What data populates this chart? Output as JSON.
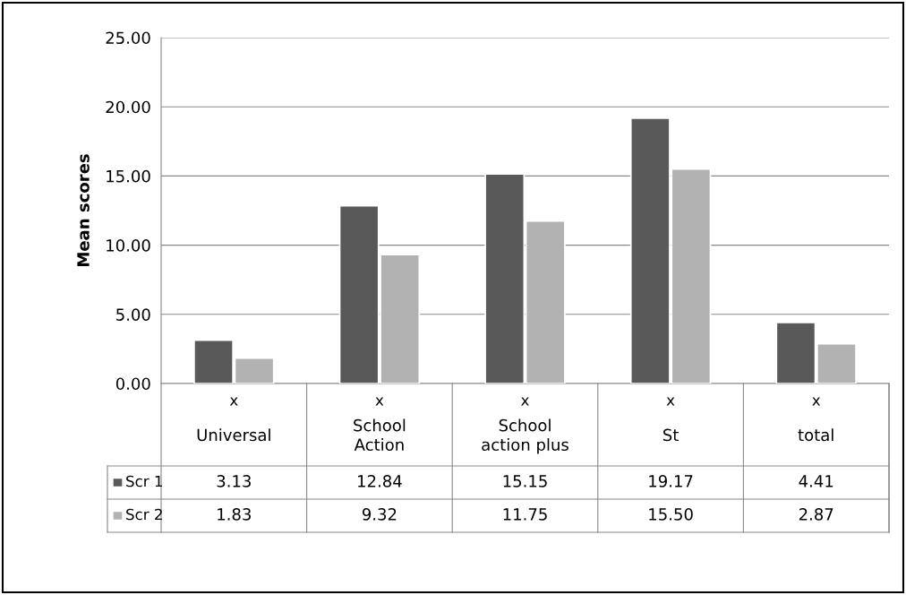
{
  "chart_data": {
    "type": "bar",
    "ylabel": "Mean scores",
    "categories": [
      "Universal",
      "School\nAction",
      "School\naction plus",
      "St",
      "total"
    ],
    "series": [
      {
        "name": "Scr 1",
        "color": "#595959",
        "values": [
          3.13,
          12.84,
          15.15,
          19.17,
          4.41
        ],
        "value_labels": [
          "3.13",
          "12.84",
          "15.15",
          "19.17",
          "4.41"
        ]
      },
      {
        "name": "Scr 2",
        "color": "#b2b2b2",
        "values": [
          1.83,
          9.32,
          11.75,
          15.5,
          2.87
        ],
        "value_labels": [
          "1.83",
          "9.32",
          "11.75",
          "15.50",
          "2.87"
        ]
      }
    ],
    "annotations": [
      "x",
      "x",
      "x",
      "x",
      "x"
    ],
    "ylim": [
      0,
      25
    ],
    "yticks": [
      {
        "value": 0,
        "label": "0.00"
      },
      {
        "value": 5,
        "label": "5.00"
      },
      {
        "value": 10,
        "label": "10.00"
      },
      {
        "value": 15,
        "label": "15.00"
      },
      {
        "value": 20,
        "label": "20.00"
      },
      {
        "value": 25,
        "label": "25.00"
      }
    ],
    "grid": "y",
    "legend": "bottom"
  }
}
